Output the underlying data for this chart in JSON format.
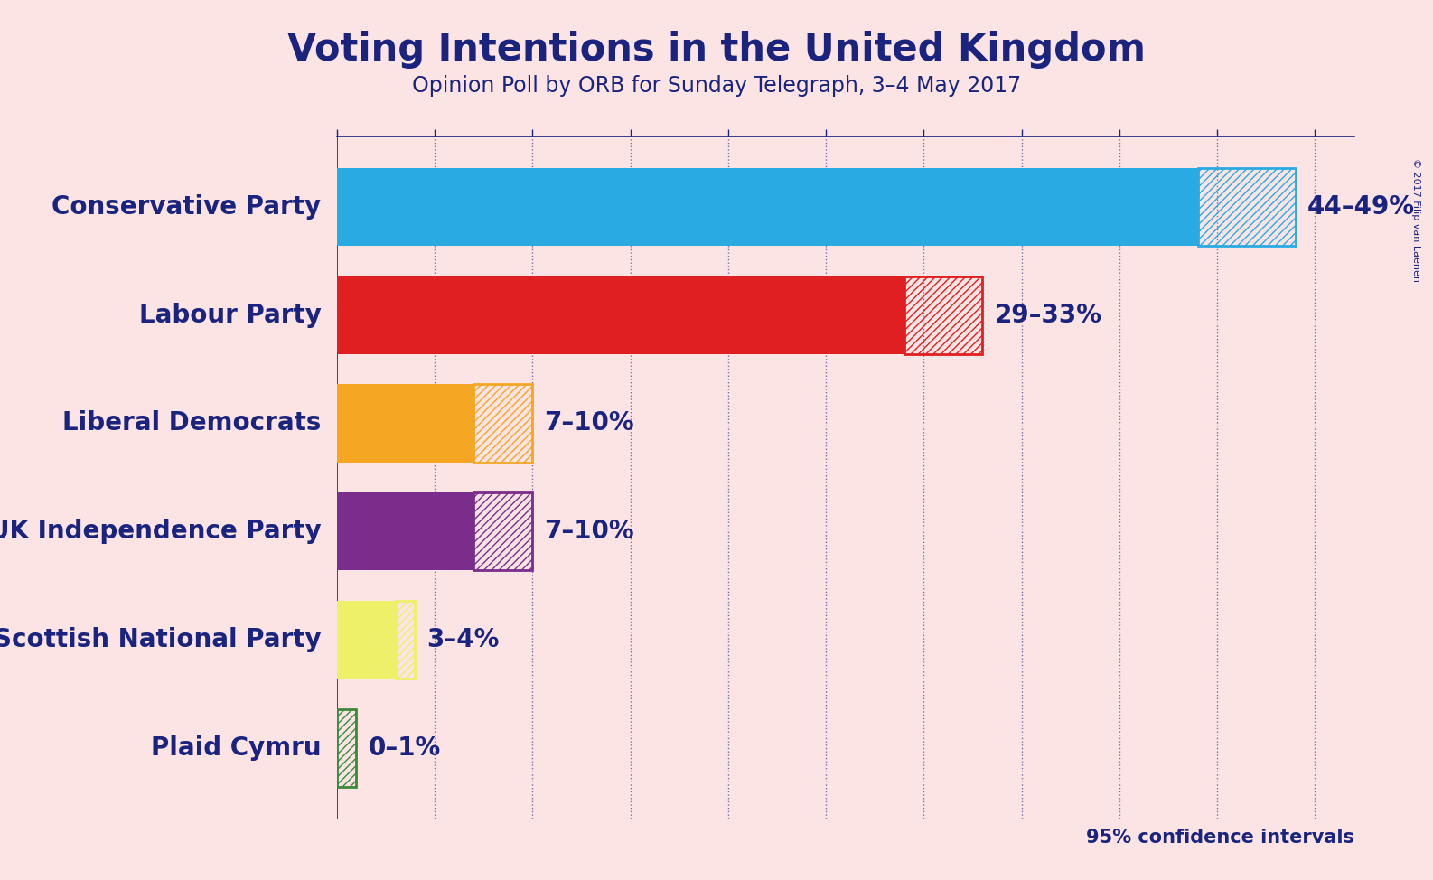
{
  "title": "Voting Intentions in the United Kingdom",
  "subtitle": "Opinion Poll by ORB for Sunday Telegraph, 3–4 May 2017",
  "copyright": "© 2017 Filip van Laenen",
  "background_color": "#fce4e4",
  "title_color": "#1a237e",
  "subtitle_color": "#1a237e",
  "label_color": "#1a237e",
  "confidence_text": "95% confidence intervals",
  "confidence_color": "#1a237e",
  "parties": [
    "Conservative Party",
    "Labour Party",
    "Liberal Democrats",
    "UK Independence Party",
    "Scottish National Party",
    "Plaid Cymru"
  ],
  "low_values": [
    44,
    29,
    7,
    7,
    3,
    0
  ],
  "high_values": [
    49,
    33,
    10,
    10,
    4,
    1
  ],
  "colors": [
    "#29abe2",
    "#e02020",
    "#f5a623",
    "#7b2d8b",
    "#eef06a",
    "#3a8a3a"
  ],
  "labels": [
    "44–49%",
    "29–33%",
    "7–10%",
    "7–10%",
    "3–4%",
    "0–1%"
  ],
  "xlim": [
    0,
    52
  ],
  "tick_positions": [
    0,
    5,
    10,
    15,
    20,
    25,
    30,
    35,
    40,
    45,
    50
  ],
  "bar_height": 0.72,
  "label_fontsize": 20,
  "value_fontsize": 20,
  "title_fontsize": 30,
  "subtitle_fontsize": 17
}
